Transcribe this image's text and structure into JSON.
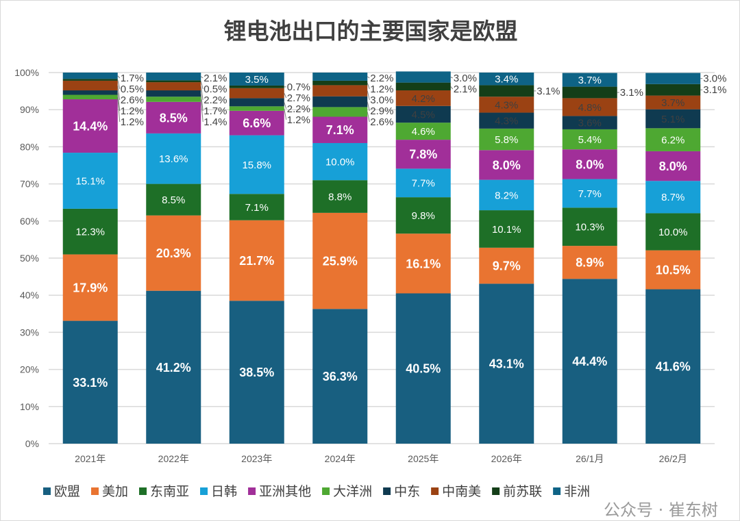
{
  "chart_data": {
    "type": "bar",
    "stacked": true,
    "title": "锂电池出口的主要国家是欧盟",
    "categories": [
      "2021年",
      "2022年",
      "2023年",
      "2024年",
      "2025年",
      "2026年",
      "26/1月",
      "26/2月"
    ],
    "ylim": [
      0,
      100
    ],
    "yticks": [
      "0%",
      "10%",
      "20%",
      "30%",
      "40%",
      "50%",
      "60%",
      "70%",
      "80%",
      "90%",
      "100%"
    ],
    "grid": true,
    "legend": "bottom",
    "series": [
      {
        "name": "欧盟",
        "color": "#185f80",
        "bold": true,
        "labelColor": "#ffffff",
        "values": [
          33.1,
          41.2,
          38.5,
          36.3,
          40.5,
          43.1,
          44.4,
          41.6
        ]
      },
      {
        "name": "美加",
        "color": "#e97431",
        "bold": true,
        "labelColor": "#ffffff",
        "values": [
          17.9,
          20.3,
          21.7,
          25.9,
          16.1,
          9.7,
          8.9,
          10.5
        ]
      },
      {
        "name": "东南亚",
        "color": "#1e6f27",
        "bold": false,
        "labelColor": "#ffffff",
        "values": [
          12.3,
          8.5,
          7.1,
          8.8,
          9.8,
          10.1,
          10.3,
          10.0
        ]
      },
      {
        "name": "日韩",
        "color": "#17a0d7",
        "bold": false,
        "labelColor": "#ffffff",
        "values": [
          15.1,
          13.6,
          15.8,
          10.0,
          7.7,
          8.2,
          7.7,
          8.7
        ]
      },
      {
        "name": "亚洲其他",
        "color": "#a12f99",
        "bold": true,
        "labelColor": "#ffffff",
        "values": [
          14.4,
          8.5,
          6.6,
          7.1,
          7.8,
          8.0,
          8.0,
          8.0
        ]
      },
      {
        "name": "大洋洲",
        "color": "#4ea832",
        "bold": false,
        "labelColor": "#ffffff",
        "values": [
          1.2,
          1.4,
          1.2,
          2.6,
          4.6,
          5.8,
          5.4,
          6.2
        ]
      },
      {
        "name": "中东",
        "color": "#0f3a50",
        "bold": false,
        "labelColor": "#404040",
        "values": [
          1.2,
          1.7,
          2.2,
          2.9,
          4.5,
          4.3,
          3.6,
          5.1
        ]
      },
      {
        "name": "中南美",
        "color": "#9b4213",
        "bold": false,
        "labelColor": "#404040",
        "values": [
          2.6,
          2.2,
          2.7,
          3.0,
          4.2,
          4.3,
          4.8,
          3.7
        ]
      },
      {
        "name": "前苏联",
        "color": "#143e18",
        "bold": false,
        "labelColor": "#404040",
        "values": [
          0.5,
          0.5,
          0.7,
          1.2,
          2.1,
          3.1,
          3.1,
          3.1
        ]
      },
      {
        "name": "非洲",
        "color": "#0e6386",
        "bold": false,
        "labelColor": "#ffffff",
        "values": [
          1.7,
          2.1,
          3.5,
          2.2,
          3.0,
          3.4,
          3.7,
          3.0
        ]
      }
    ]
  },
  "watermark": "公众号 · 崔东树"
}
